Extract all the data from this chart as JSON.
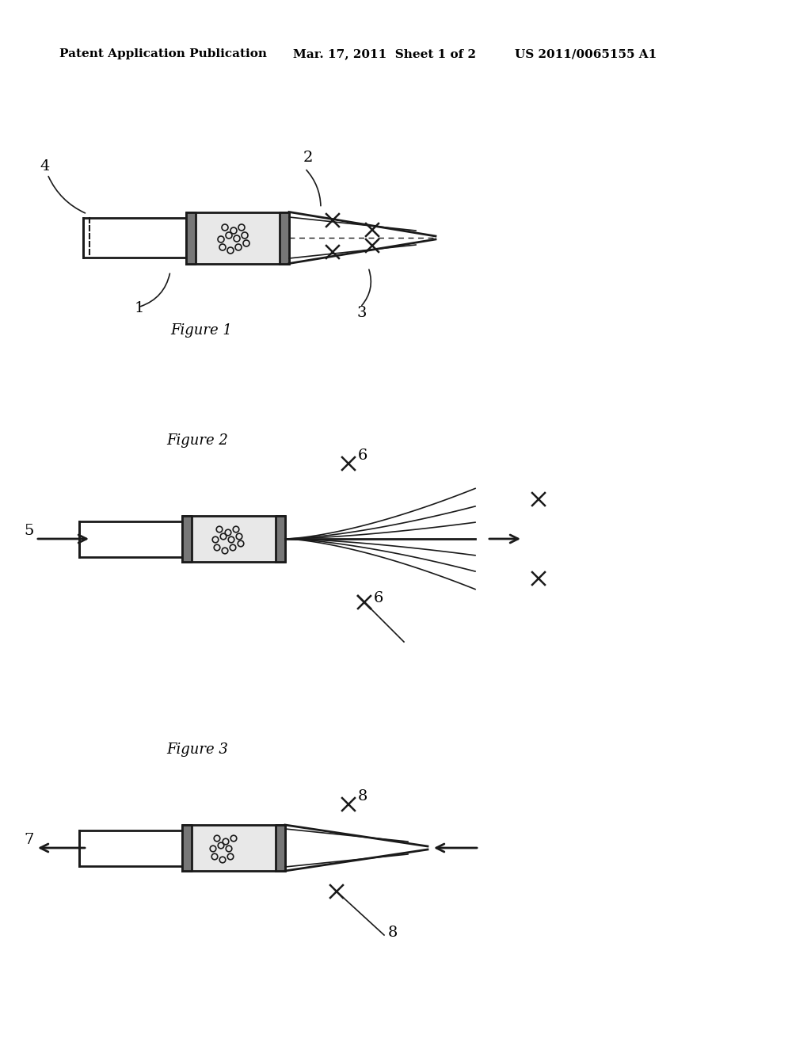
{
  "bg_color": "#ffffff",
  "header_left": "Patent Application Publication",
  "header_mid": "Mar. 17, 2011  Sheet 1 of 2",
  "header_right": "US 2011/0065155 A1",
  "fig1_label": "Figure 1",
  "fig2_label": "Figure 2",
  "fig3_label": "Figure 3"
}
